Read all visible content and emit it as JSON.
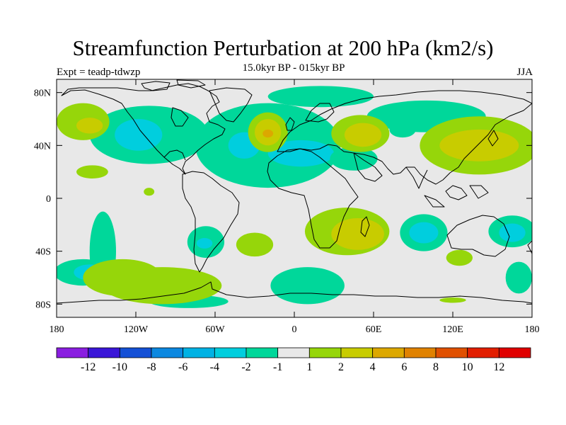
{
  "header": {
    "title": "Streamfunction Perturbation at 200 hPa (km2/s)",
    "subtitle": "15.0kyr BP - 015kyr BP",
    "expt": "Expt = teadp-tdwzp",
    "season": "JJA"
  },
  "chart_data": {
    "type": "heatmap",
    "title": "Streamfunction Perturbation at 200 hPa (km2/s)",
    "xlabel": "",
    "ylabel": "",
    "xlim": [
      -180,
      180
    ],
    "ylim": [
      -90,
      90
    ],
    "x_ticks": [
      {
        "value": -180,
        "label": "180"
      },
      {
        "value": -120,
        "label": "120W"
      },
      {
        "value": -60,
        "label": "60W"
      },
      {
        "value": 0,
        "label": "0"
      },
      {
        "value": 60,
        "label": "60E"
      },
      {
        "value": 120,
        "label": "120E"
      },
      {
        "value": 180,
        "label": "180"
      }
    ],
    "y_ticks": [
      {
        "value": 80,
        "label": "80N"
      },
      {
        "value": 40,
        "label": "40N"
      },
      {
        "value": 0,
        "label": "0"
      },
      {
        "value": -40,
        "label": "40S"
      },
      {
        "value": -80,
        "label": "80S"
      }
    ],
    "colorbar": {
      "labels": [
        "-12",
        "-10",
        "-8",
        "-6",
        "-4",
        "-2",
        "-1",
        "1",
        "2",
        "4",
        "6",
        "8",
        "10",
        "12"
      ],
      "colors": [
        "#8a1ee0",
        "#3a16d8",
        "#1450d6",
        "#0c88e0",
        "#00b2e4",
        "#00cede",
        "#00d79a",
        "#e8e8e8",
        "#96d60a",
        "#c8cc00",
        "#dca800",
        "#e08200",
        "#e05000",
        "#e21e00",
        "#e00000"
      ]
    },
    "regions": [
      {
        "level": "-1",
        "kind": "negative",
        "lon": -110,
        "lat": 48,
        "rx": 45,
        "ry": 22
      },
      {
        "level": "-2",
        "kind": "negative",
        "lon": -118,
        "lat": 48,
        "rx": 18,
        "ry": 12
      },
      {
        "level": "-1",
        "kind": "negative",
        "lon": -20,
        "lat": 40,
        "rx": 55,
        "ry": 32
      },
      {
        "level": "-2",
        "kind": "negative",
        "lon": -38,
        "lat": 40,
        "rx": 12,
        "ry": 10
      },
      {
        "level": "-2",
        "kind": "negative",
        "lon": 5,
        "lat": 34,
        "rx": 25,
        "ry": 10
      },
      {
        "level": "-1",
        "kind": "negative",
        "lon": 20,
        "lat": 77,
        "rx": 40,
        "ry": 8
      },
      {
        "level": "-1",
        "kind": "negative",
        "lon": 82,
        "lat": 52,
        "rx": 10,
        "ry": 6
      },
      {
        "level": "-1",
        "kind": "negative",
        "lon": 100,
        "lat": 62,
        "rx": 45,
        "ry": 12
      },
      {
        "level": "-1",
        "kind": "negative",
        "lon": 45,
        "lat": 30,
        "rx": 18,
        "ry": 9
      },
      {
        "level": "-1",
        "kind": "negative",
        "lon": -145,
        "lat": -40,
        "rx": 10,
        "ry": 30
      },
      {
        "level": "-1",
        "kind": "negative",
        "lon": -160,
        "lat": -56,
        "rx": 22,
        "ry": 10
      },
      {
        "level": "-2",
        "kind": "negative",
        "lon": -155,
        "lat": -56,
        "rx": 12,
        "ry": 6
      },
      {
        "level": "-1",
        "kind": "negative",
        "lon": -67,
        "lat": -33,
        "rx": 14,
        "ry": 12
      },
      {
        "level": "-2",
        "kind": "negative",
        "lon": -68,
        "lat": -34,
        "rx": 6,
        "ry": 4
      },
      {
        "level": "-1",
        "kind": "negative",
        "lon": 98,
        "lat": -26,
        "rx": 18,
        "ry": 14
      },
      {
        "level": "-2",
        "kind": "negative",
        "lon": 98,
        "lat": -26,
        "rx": 11,
        "ry": 8
      },
      {
        "level": "-1",
        "kind": "negative",
        "lon": 165,
        "lat": -25,
        "rx": 18,
        "ry": 12
      },
      {
        "level": "-2",
        "kind": "negative",
        "lon": 165,
        "lat": -26,
        "rx": 10,
        "ry": 7
      },
      {
        "level": "-1",
        "kind": "negative",
        "lon": 10,
        "lat": -66,
        "rx": 28,
        "ry": 14
      },
      {
        "level": "-1",
        "kind": "negative",
        "lon": -80,
        "lat": -78,
        "rx": 30,
        "ry": 5
      },
      {
        "level": "-1",
        "kind": "negative",
        "lon": 170,
        "lat": -60,
        "rx": 10,
        "ry": 12
      },
      {
        "level": "1",
        "kind": "positive",
        "lon": -160,
        "lat": 58,
        "rx": 20,
        "ry": 14
      },
      {
        "level": "2",
        "kind": "positive",
        "lon": -155,
        "lat": 55,
        "rx": 10,
        "ry": 6
      },
      {
        "level": "1",
        "kind": "positive",
        "lon": -153,
        "lat": 20,
        "rx": 12,
        "ry": 5
      },
      {
        "level": "1",
        "kind": "positive",
        "lon": -20,
        "lat": 50,
        "rx": 15,
        "ry": 15
      },
      {
        "level": "2",
        "kind": "positive",
        "lon": -20,
        "lat": 50,
        "rx": 10,
        "ry": 10
      },
      {
        "level": "4",
        "kind": "positive",
        "lon": -20,
        "lat": 49,
        "rx": 4,
        "ry": 3
      },
      {
        "level": "1",
        "kind": "positive",
        "lon": 50,
        "lat": 49,
        "rx": 22,
        "ry": 14
      },
      {
        "level": "2",
        "kind": "positive",
        "lon": 52,
        "lat": 48,
        "rx": 14,
        "ry": 9
      },
      {
        "level": "1",
        "kind": "positive",
        "lon": 140,
        "lat": 40,
        "rx": 45,
        "ry": 22
      },
      {
        "level": "2",
        "kind": "positive",
        "lon": 140,
        "lat": 40,
        "rx": 30,
        "ry": 12
      },
      {
        "level": "1",
        "kind": "positive",
        "lon": -110,
        "lat": 5,
        "rx": 4,
        "ry": 3
      },
      {
        "level": "1",
        "kind": "positive",
        "lon": 40,
        "lat": -25,
        "rx": 32,
        "ry": 18
      },
      {
        "level": "2",
        "kind": "positive",
        "lon": 48,
        "lat": -27,
        "rx": 20,
        "ry": 12
      },
      {
        "level": "1",
        "kind": "positive",
        "lon": -30,
        "lat": -35,
        "rx": 14,
        "ry": 9
      },
      {
        "level": "1",
        "kind": "positive",
        "lon": -130,
        "lat": -60,
        "rx": 30,
        "ry": 14
      },
      {
        "level": "1",
        "kind": "positive",
        "lon": -100,
        "lat": -66,
        "rx": 45,
        "ry": 14
      },
      {
        "level": "1",
        "kind": "positive",
        "lon": 125,
        "lat": -45,
        "rx": 10,
        "ry": 6
      },
      {
        "level": "1",
        "kind": "positive",
        "lon": 120,
        "lat": -77,
        "rx": 10,
        "ry": 2
      }
    ]
  }
}
